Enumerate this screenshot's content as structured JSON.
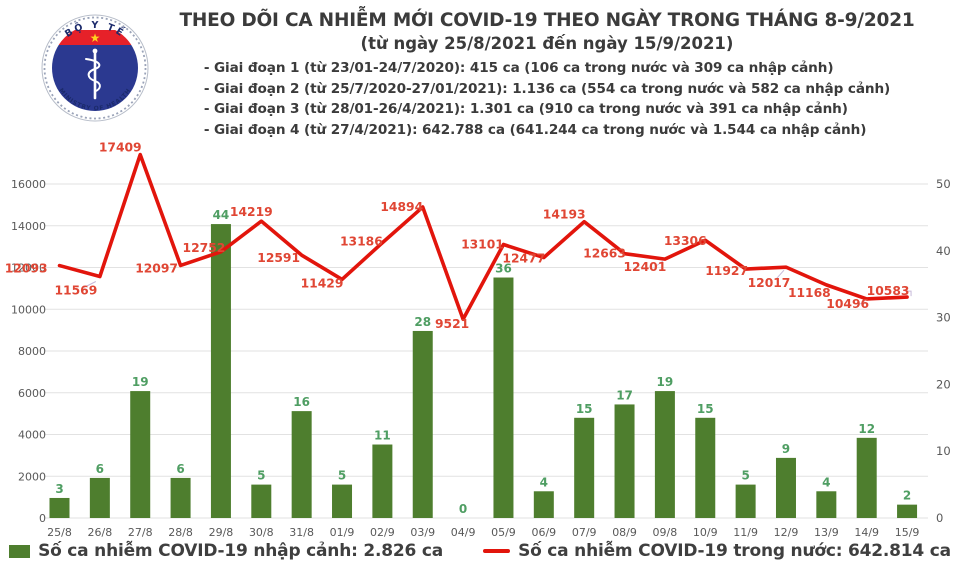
{
  "header": {
    "title_line1": "THEO DÕI CA NHIỄM MỚI COVID-19 THEO NGÀY TRONG THÁNG 8-9/2021",
    "title_line2": "(từ ngày 25/8/2021 đến ngày 15/9/2021)",
    "bullets": [
      "- Giai đoạn 1 (từ 23/01-24/7/2020): 415 ca (106 ca trong nước và 309 ca nhập cảnh)",
      "- Giai đoạn 2 (từ 25/7/2020-27/01/2021): 1.136 ca (554 ca trong nước và 582 ca nhập cảnh)",
      "- Giai đoạn 3 (từ 28/01-26/4/2021): 1.301 ca (910 ca trong nước và 391 ca nhập cảnh)",
      "- Giai đoạn 4 (từ 27/4/2021): 642.788 ca (641.244 ca trong nước và 1.544 ca nhập cảnh)"
    ],
    "logo": {
      "top_text": "BỘ Y TẾ",
      "bottom_text": "MINISTRY OF HEALTH",
      "star": "★",
      "navy": "#2b3990",
      "red": "#e62129",
      "yellow": "#ffd21e"
    }
  },
  "chart_data": {
    "type": "combo",
    "categories": [
      "25/8",
      "26/8",
      "27/8",
      "28/8",
      "29/8",
      "30/8",
      "31/8",
      "01/9",
      "02/9",
      "03/9",
      "04/9",
      "05/9",
      "06/9",
      "07/9",
      "08/9",
      "09/8",
      "10/9",
      "11/9",
      "12/9",
      "13/9",
      "14/9",
      "15/9"
    ],
    "series": [
      {
        "name": "Số ca nhiễm COVID-19 nhập cảnh: 2.826 ca",
        "type": "bar",
        "axis": "right",
        "color": "#4e7e2e",
        "label_color": "#4f9e63",
        "values": [
          3,
          6,
          19,
          6,
          44,
          5,
          16,
          5,
          11,
          28,
          0,
          36,
          4,
          15,
          17,
          19,
          15,
          5,
          9,
          4,
          12,
          2
        ]
      },
      {
        "name": "Số ca nhiễm COVID-19 trong nước: 642.814 ca",
        "type": "line",
        "axis": "left",
        "color": "#e2150c",
        "label_color": "#e04634",
        "values": [
          12093,
          11569,
          17409,
          12097,
          12752,
          14219,
          12591,
          11429,
          13186,
          14894,
          9521,
          13101,
          12477,
          14193,
          12663,
          12401,
          13306,
          11927,
          12017,
          11168,
          10496,
          10583
        ]
      }
    ],
    "left_axis": {
      "min": 0,
      "max": 16000,
      "step": 2000
    },
    "right_axis": {
      "min": 0,
      "max": 50,
      "step": 10
    },
    "grid": true,
    "legend_position": "bottom"
  }
}
